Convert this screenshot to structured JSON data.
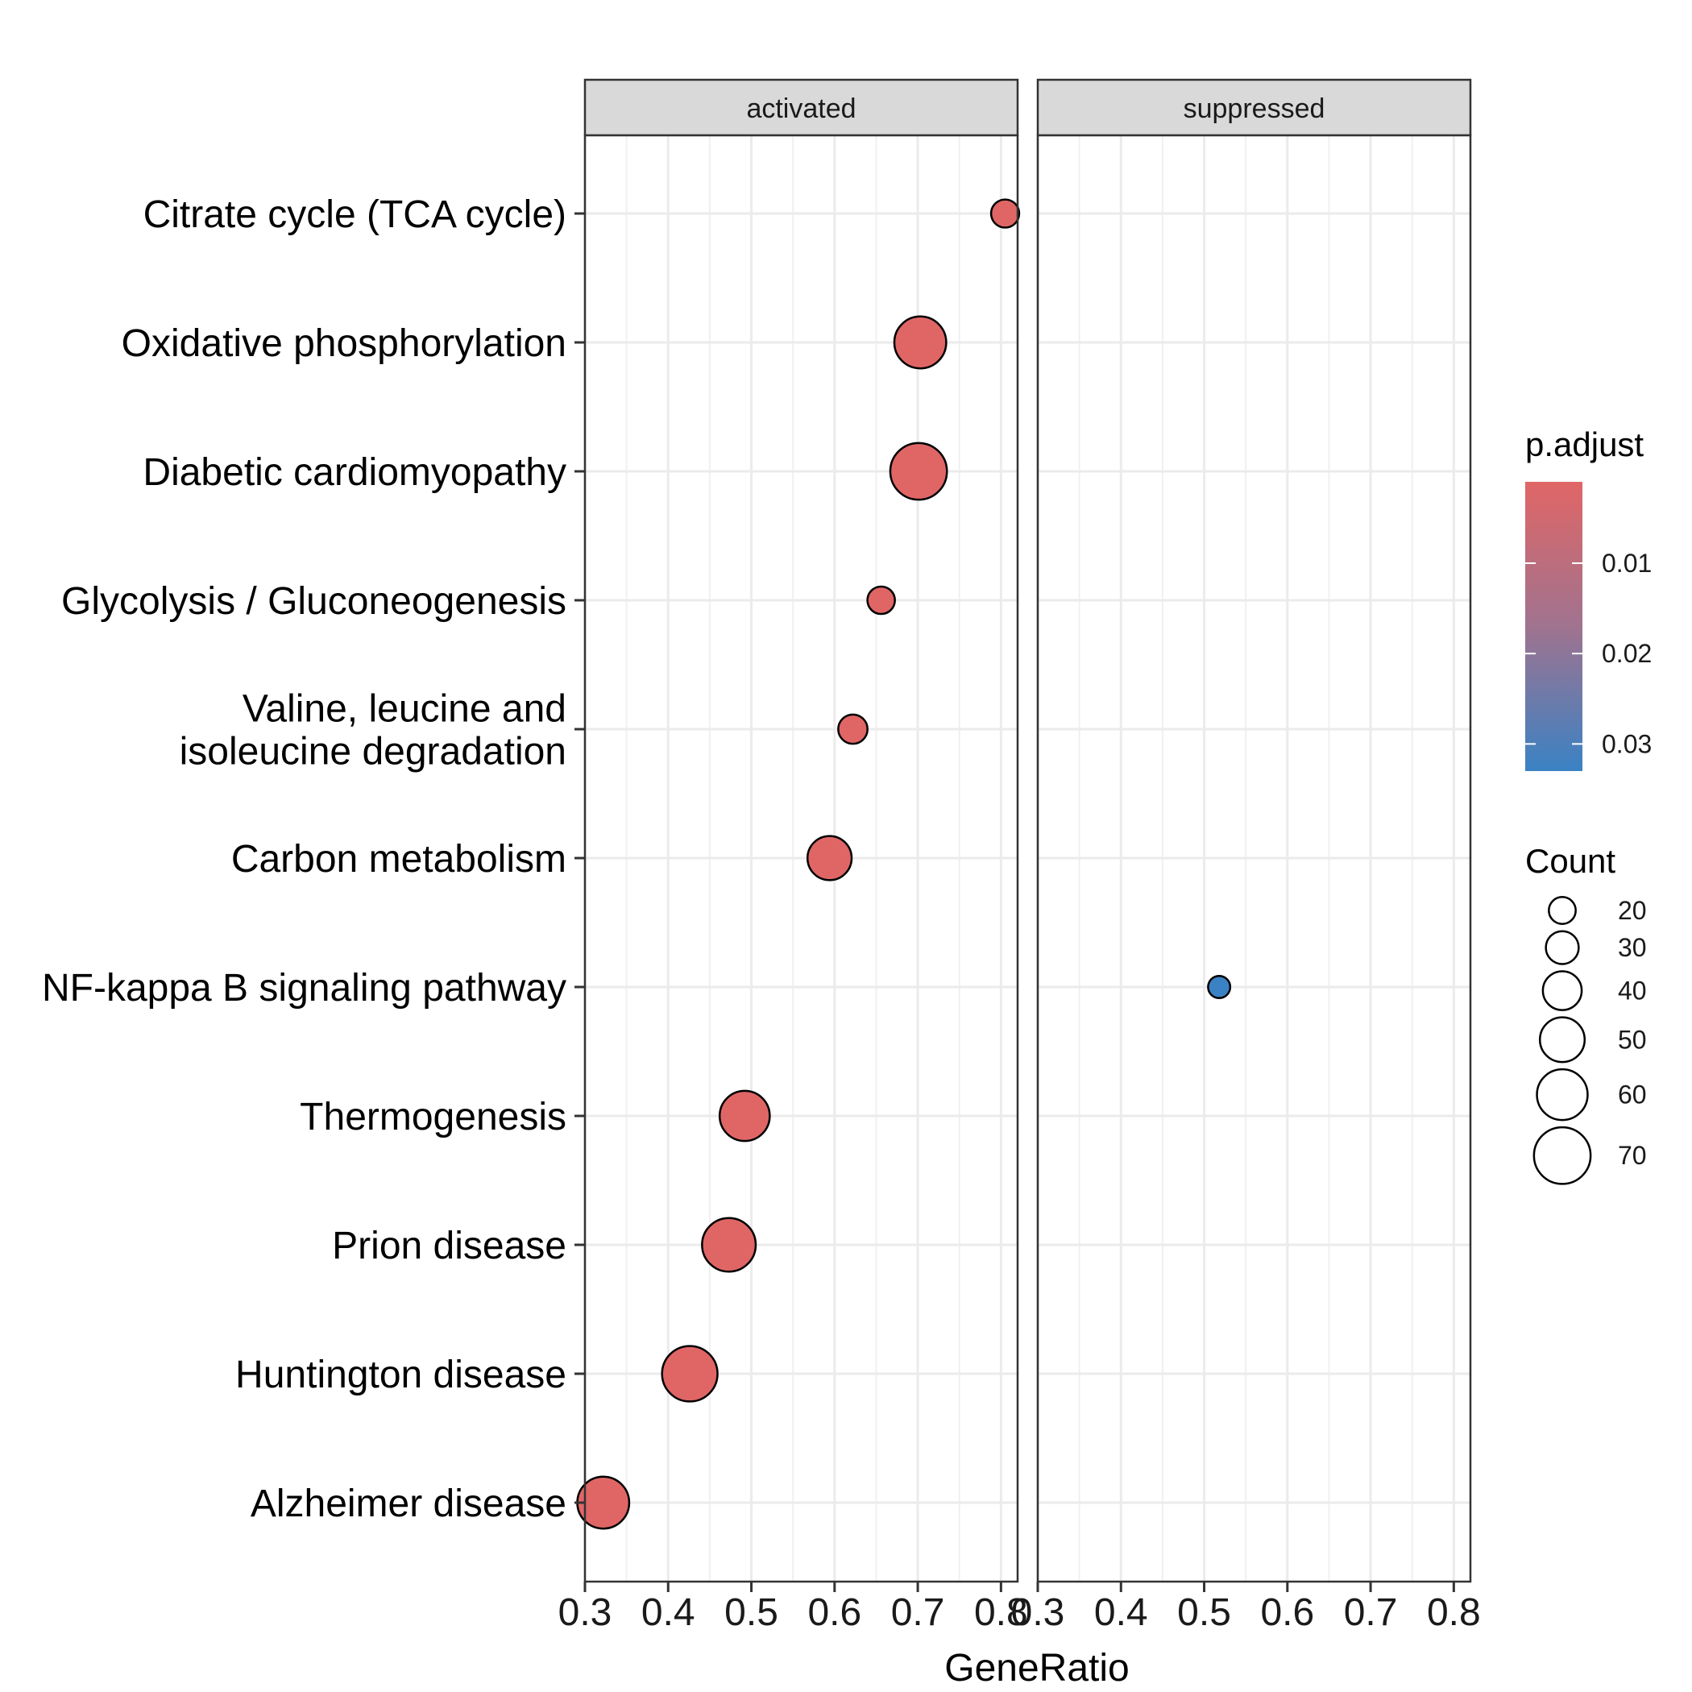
{
  "chart_data": {
    "type": "scatter",
    "xlabel": "GeneRatio",
    "xlim": [
      0.3,
      0.82
    ],
    "x_ticks": [
      0.3,
      0.4,
      0.5,
      0.6,
      0.7,
      0.8
    ],
    "x_tick_labels": [
      "0.3",
      "0.4",
      "0.5",
      "0.6",
      "0.7",
      "0.8"
    ],
    "facets": [
      "activated",
      "suppressed"
    ],
    "categories": [
      [
        "Citrate cycle (TCA cycle)"
      ],
      [
        "Oxidative phosphorylation"
      ],
      [
        "Diabetic cardiomyopathy"
      ],
      [
        "Glycolysis / Gluconeogenesis"
      ],
      [
        "Valine, leucine and",
        "isoleucine degradation"
      ],
      [
        "Carbon metabolism"
      ],
      [
        "NF-kappa B signaling pathway"
      ],
      [
        "Thermogenesis"
      ],
      [
        "Prion disease"
      ],
      [
        "Huntington disease"
      ],
      [
        "Alzheimer disease"
      ]
    ],
    "points": [
      {
        "facet": "activated",
        "category_index": 0,
        "gene_ratio": 0.805,
        "count": 22,
        "p_adjust": 0.001
      },
      {
        "facet": "activated",
        "category_index": 1,
        "gene_ratio": 0.703,
        "count": 62,
        "p_adjust": 0.001
      },
      {
        "facet": "activated",
        "category_index": 2,
        "gene_ratio": 0.701,
        "count": 70,
        "p_adjust": 0.001
      },
      {
        "facet": "activated",
        "category_index": 3,
        "gene_ratio": 0.656,
        "count": 21,
        "p_adjust": 0.001
      },
      {
        "facet": "activated",
        "category_index": 4,
        "gene_ratio": 0.622,
        "count": 24,
        "p_adjust": 0.001
      },
      {
        "facet": "activated",
        "category_index": 5,
        "gene_ratio": 0.594,
        "count": 49,
        "p_adjust": 0.001
      },
      {
        "facet": "suppressed",
        "category_index": 6,
        "gene_ratio": 0.518,
        "count": 12,
        "p_adjust": 0.033
      },
      {
        "facet": "activated",
        "category_index": 7,
        "gene_ratio": 0.492,
        "count": 59,
        "p_adjust": 0.001
      },
      {
        "facet": "activated",
        "category_index": 8,
        "gene_ratio": 0.473,
        "count": 65,
        "p_adjust": 0.001
      },
      {
        "facet": "activated",
        "category_index": 9,
        "gene_ratio": 0.426,
        "count": 68,
        "p_adjust": 0.001
      },
      {
        "facet": "activated",
        "category_index": 10,
        "gene_ratio": 0.322,
        "count": 62,
        "p_adjust": 0.001
      }
    ],
    "color_legend": {
      "title": "p.adjust",
      "low_color": "#e06666",
      "high_color": "#3a82c4",
      "range": [
        0.001,
        0.033
      ],
      "ticks": [
        0.01,
        0.02,
        0.03
      ],
      "tick_labels": [
        "0.01",
        "0.02",
        "0.03"
      ]
    },
    "size_legend": {
      "title": "Count",
      "values": [
        20,
        30,
        40,
        50,
        60,
        70
      ],
      "labels": [
        "20",
        "30",
        "40",
        "50",
        "60",
        "70"
      ]
    },
    "grid": true,
    "legend_position": "right"
  }
}
